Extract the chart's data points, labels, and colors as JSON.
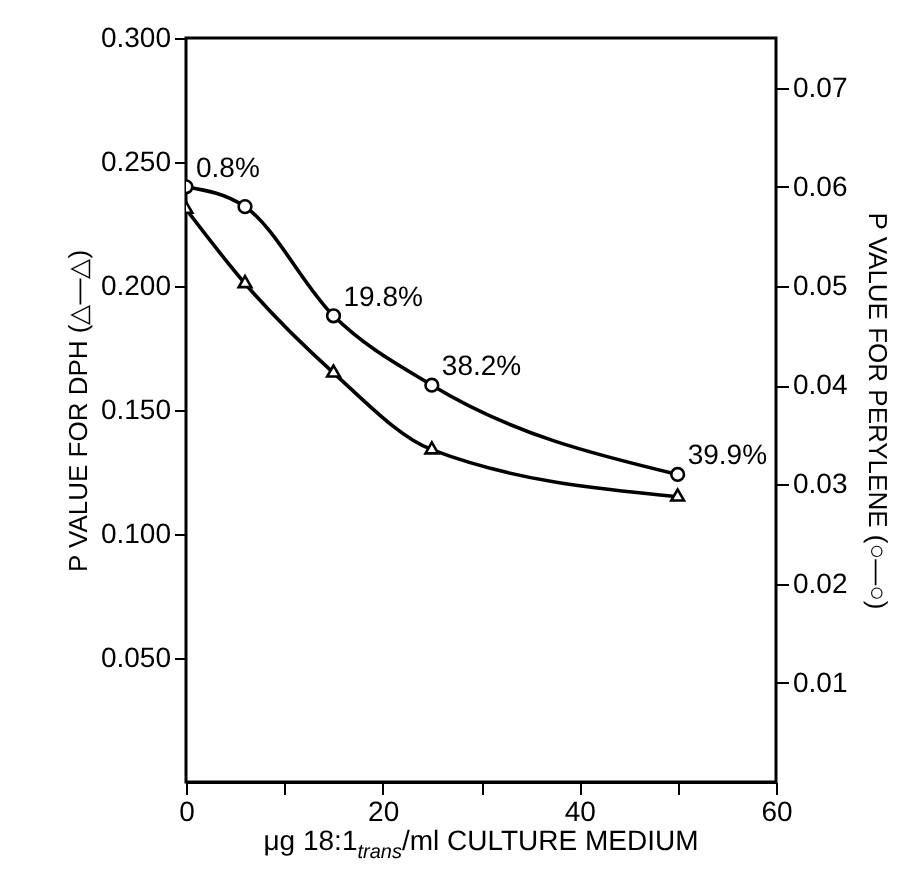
{
  "chart_data": {
    "type": "line",
    "xlabel": "μg 18:1$_{trans}$/ml CULTURE MEDIUM",
    "ylabel": "P VALUE FOR DPH (△—△)",
    "y2label": "P VALUE FOR PERYLENE (○—○)",
    "x": [
      0,
      6,
      15,
      25,
      50
    ],
    "series": [
      {
        "color": "#000000",
        "marker": "triangle",
        "values": [
          0.231,
          0.201,
          0.165,
          0.134,
          0.115
        ]
      },
      {
        "color": "#000000",
        "marker": "circle",
        "axis": "y2",
        "values": [
          0.06,
          0.058,
          0.047,
          0.04,
          0.031
        ]
      }
    ],
    "xlim": [
      0,
      60
    ],
    "xticks": [
      0,
      {
        "value": 10,
        "label": null
      },
      20,
      {
        "value": 30,
        "label": null
      },
      40,
      {
        "value": 50,
        "label": null
      },
      60
    ],
    "ylim": [
      0,
      0.3
    ],
    "yticks": [
      {
        "value": 0.05,
        "label": "0.050"
      },
      {
        "value": 0.1,
        "label": "0.100"
      },
      {
        "value": 0.15,
        "label": "0.150"
      },
      {
        "value": 0.2,
        "label": "0.200"
      },
      {
        "value": 0.25,
        "label": "0.250"
      },
      {
        "value": 0.3,
        "label": "0.300"
      }
    ],
    "y2lim": [
      0,
      0.075
    ],
    "y2ticks": [
      0.01,
      0.02,
      0.03,
      0.04,
      0.05,
      0.06,
      0.07
    ],
    "annotations": [
      {
        "text": "0.8%",
        "x": 0,
        "y": 0.24
      },
      {
        "text": "19.8%",
        "x": 15,
        "y": 0.188
      },
      {
        "text": "38.2%",
        "x": 25,
        "y": 0.16
      },
      {
        "text": "39.9%",
        "x": 50,
        "y": 0.124
      }
    ],
    "grid": false
  }
}
